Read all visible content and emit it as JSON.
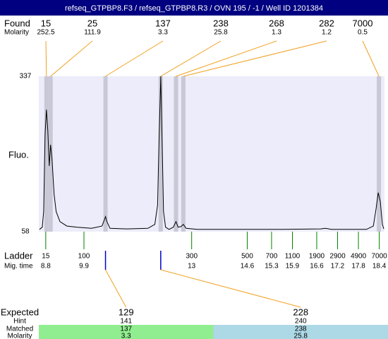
{
  "header": {
    "title": "refseq_GTPBP8.F3 / refseq_GTPBP8.R3 / OVN 195 / -1 / Well ID 1201384"
  },
  "chart_data": {
    "type": "line",
    "ylabel": "Fluo.",
    "ylim": [
      58,
      337
    ],
    "yticks": [
      58,
      337
    ],
    "xlim": [
      8.6,
      18.55
    ],
    "color": "#000000",
    "x": [
      8.62,
      8.7,
      8.74,
      8.78,
      8.82,
      8.86,
      8.9,
      8.94,
      8.98,
      9.04,
      9.1,
      9.21,
      9.41,
      9.71,
      10.12,
      10.42,
      10.48,
      10.52,
      10.56,
      10.65,
      11.13,
      11.74,
      11.94,
      12.02,
      12.06,
      12.11,
      12.15,
      12.19,
      12.25,
      12.35,
      12.47,
      12.55,
      12.61,
      12.69,
      12.76,
      12.84,
      13.16,
      13.97,
      15.6,
      16.71,
      16.85,
      17.02,
      18.03,
      18.23,
      18.31,
      18.37,
      18.43,
      18.49,
      18.53
    ],
    "values": [
      62,
      66,
      94,
      233,
      277,
      239,
      176,
      214,
      189,
      125,
      94,
      76,
      68,
      66,
      64,
      68,
      78,
      85,
      76,
      64,
      63,
      64,
      71,
      106,
      220,
      337,
      220,
      94,
      66,
      62,
      66,
      76,
      66,
      67,
      71,
      64,
      62,
      62,
      62,
      63,
      64,
      62,
      62,
      68,
      100,
      128,
      112,
      71,
      63
    ],
    "found_label": "Found",
    "found_molarity_label": "Molarity",
    "found": {
      "sizes": [
        15,
        25,
        137,
        238,
        268,
        282,
        7000
      ],
      "molarities": [
        252.5,
        111.9,
        3.3,
        25.8,
        1.3,
        1.2,
        0.5
      ],
      "x": [
        8.82,
        8.94,
        10.52,
        12.11,
        12.55,
        12.76,
        18.39
      ]
    },
    "ladder_label": "Ladder",
    "mig_time_label": "Mig. time",
    "ladder": {
      "sizes": [
        15,
        100,
        300,
        500,
        700,
        1100,
        1900,
        2900,
        4900,
        7000
      ],
      "times": [
        8.8,
        9.9,
        13,
        14.6,
        15.3,
        15.9,
        16.6,
        17.2,
        17.8,
        18.4
      ]
    }
  },
  "expected": {
    "label": "Expected",
    "hint_label": "Hint",
    "matched_label": "Matched",
    "molarity_label": "Molarity",
    "columns": [
      {
        "expected": 129,
        "hint": 141,
        "matched": 137,
        "molarity": 3.3
      },
      {
        "expected": 228,
        "hint": 240,
        "matched": 238,
        "molarity": 25.8
      }
    ]
  }
}
